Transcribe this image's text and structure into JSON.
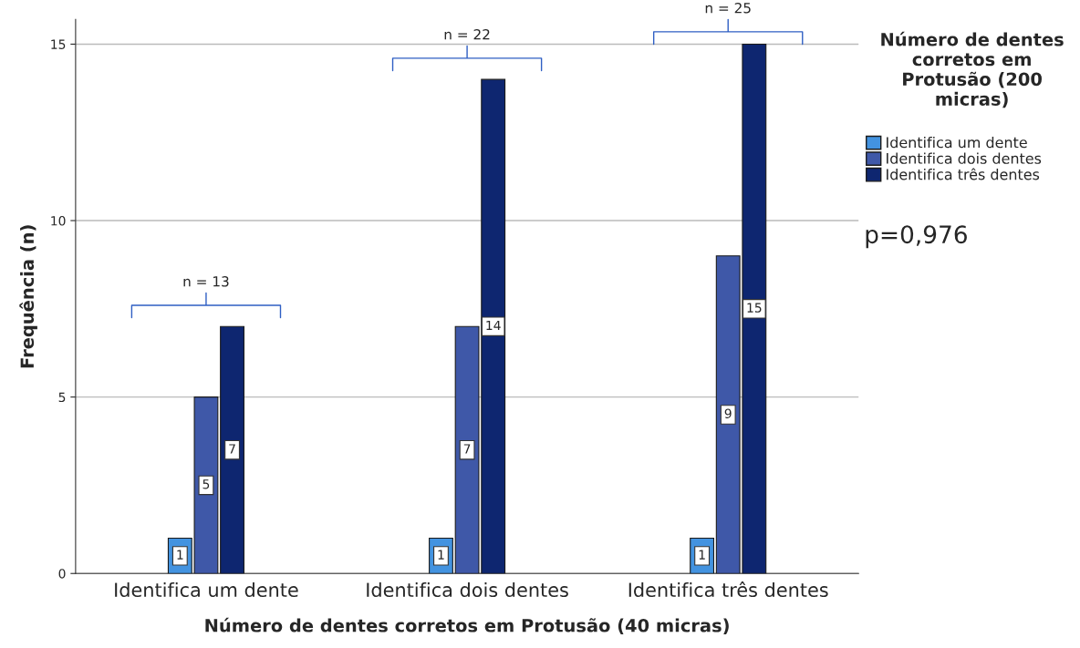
{
  "chart_data": {
    "type": "bar",
    "xlabel": "Número de dentes corretos em Protusão (40 micras)",
    "ylabel": "Frequência (n)",
    "legend_title": "Número de dentes corretos em Protusão (200 micras)",
    "categories": [
      "Identifica um dente",
      "Identifica dois dentes",
      "Identifica três dentes"
    ],
    "series": [
      {
        "name": "Identifica um dente",
        "color": "#4393e0",
        "values": [
          1,
          1,
          1
        ]
      },
      {
        "name": "Identifica dois dentes",
        "color": "#3f58a8",
        "values": [
          5,
          7,
          9
        ]
      },
      {
        "name": "Identifica três dentes",
        "color": "#0e2670",
        "values": [
          7,
          14,
          15
        ]
      }
    ],
    "ylim": [
      0,
      15.7
    ],
    "yticks": [
      0,
      5,
      10,
      15
    ],
    "grid": "y",
    "legend": "top right",
    "data_labels": true,
    "annotations": [
      "n = 13",
      "n = 22",
      "n = 25",
      "p=0,976"
    ]
  }
}
